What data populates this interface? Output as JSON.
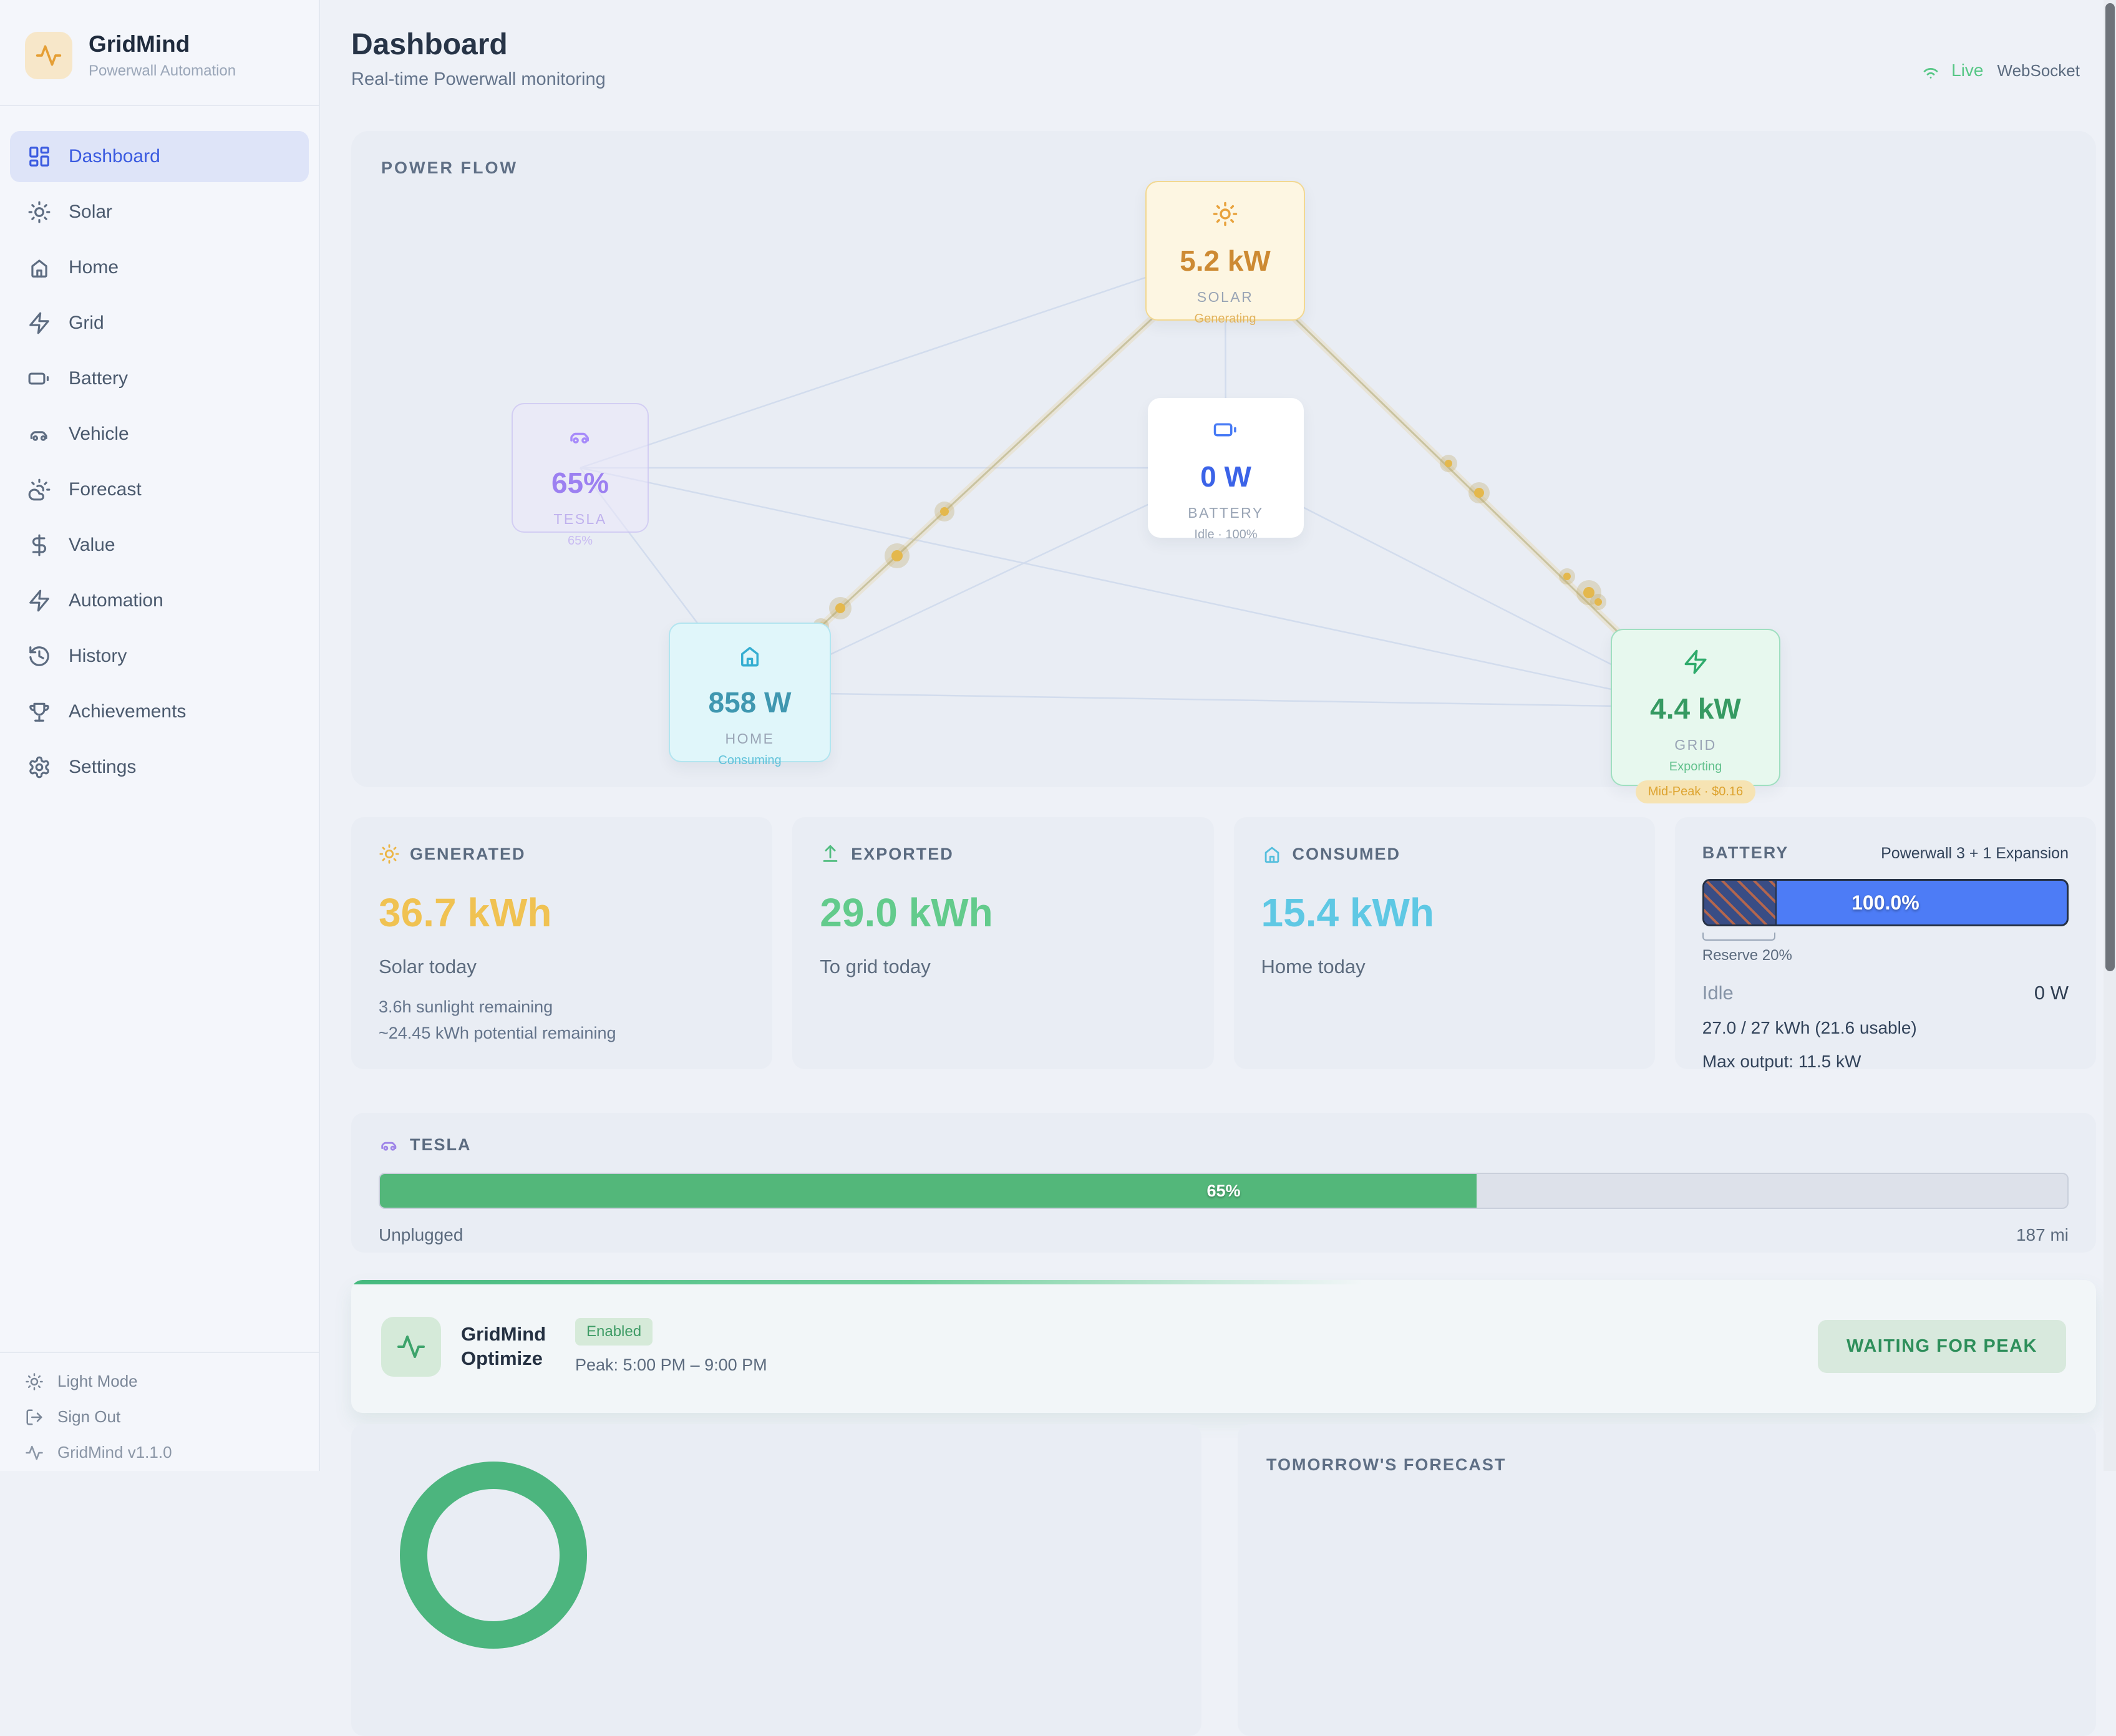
{
  "app": {
    "name": "GridMind",
    "tagline": "Powerwall Automation",
    "version": "GridMind v1.1.0"
  },
  "header": {
    "title": "Dashboard",
    "subtitle": "Real-time Powerwall monitoring",
    "connection": {
      "status": "Live",
      "transport": "WebSocket"
    }
  },
  "sidebar": {
    "items": [
      {
        "label": "Dashboard",
        "active": true
      },
      {
        "label": "Solar"
      },
      {
        "label": "Home"
      },
      {
        "label": "Grid"
      },
      {
        "label": "Battery"
      },
      {
        "label": "Vehicle"
      },
      {
        "label": "Forecast"
      },
      {
        "label": "Value"
      },
      {
        "label": "Automation"
      },
      {
        "label": "History"
      },
      {
        "label": "Achievements"
      },
      {
        "label": "Settings"
      }
    ],
    "footer": {
      "light_mode": "Light Mode",
      "sign_out": "Sign Out"
    }
  },
  "power_flow": {
    "title": "POWER FLOW",
    "nodes": {
      "solar": {
        "value": "5.2 kW",
        "label": "SOLAR",
        "sub": "Generating"
      },
      "battery": {
        "value": "0 W",
        "label": "BATTERY",
        "sub": "Idle · 100%"
      },
      "tesla": {
        "value": "65%",
        "label": "TESLA",
        "sub": "65%"
      },
      "home": {
        "value": "858 W",
        "label": "HOME",
        "sub": "Consuming"
      },
      "grid": {
        "value": "4.4 kW",
        "label": "GRID",
        "sub": "Exporting",
        "badge": "Mid-Peak · $0.16"
      }
    }
  },
  "stats": {
    "generated": {
      "label": "GENERATED",
      "value": "36.7 kWh",
      "caption": "Solar today",
      "details": [
        "3.6h sunlight remaining",
        "~24.45 kWh potential remaining"
      ]
    },
    "exported": {
      "label": "EXPORTED",
      "value": "29.0 kWh",
      "caption": "To grid today"
    },
    "consumed": {
      "label": "CONSUMED",
      "value": "15.4 kWh",
      "caption": "Home today"
    },
    "battery": {
      "label": "BATTERY",
      "system": "Powerwall 3 + 1 Expansion",
      "percent_label": "100.0%",
      "percent_value": 100,
      "reserve_percent": 20,
      "reserve_label": "Reserve 20%",
      "state": "Idle",
      "power": "0 W",
      "capacity": "27.0 / 27 kWh (21.6 usable)",
      "max_output": "Max output: 11.5 kW"
    }
  },
  "tesla_section": {
    "title": "TESLA",
    "percent_value": 65,
    "percent_label": "65%",
    "status": "Unplugged",
    "range": "187 mi"
  },
  "optimize": {
    "title": "GridMind Optimize",
    "badge": "Enabled",
    "schedule": "Peak: 5:00 PM – 9:00 PM",
    "status": "WAITING FOR PEAK"
  },
  "forecast": {
    "title": "TOMORROW'S FORECAST"
  },
  "colors": {
    "accent_blue": "#3a5ae0",
    "solar_orange": "#e8a23c",
    "yellow_value": "#f0c252",
    "green_value": "#63cb8c",
    "cyan_value": "#5fc8e4",
    "purple_value": "#8f6ef0",
    "battery_fill": "#4d7cf6",
    "tesla_fill": "#53b77a",
    "live_green": "#57c786",
    "grid_green": "#369a62",
    "badge_amber": "#dda32f"
  }
}
